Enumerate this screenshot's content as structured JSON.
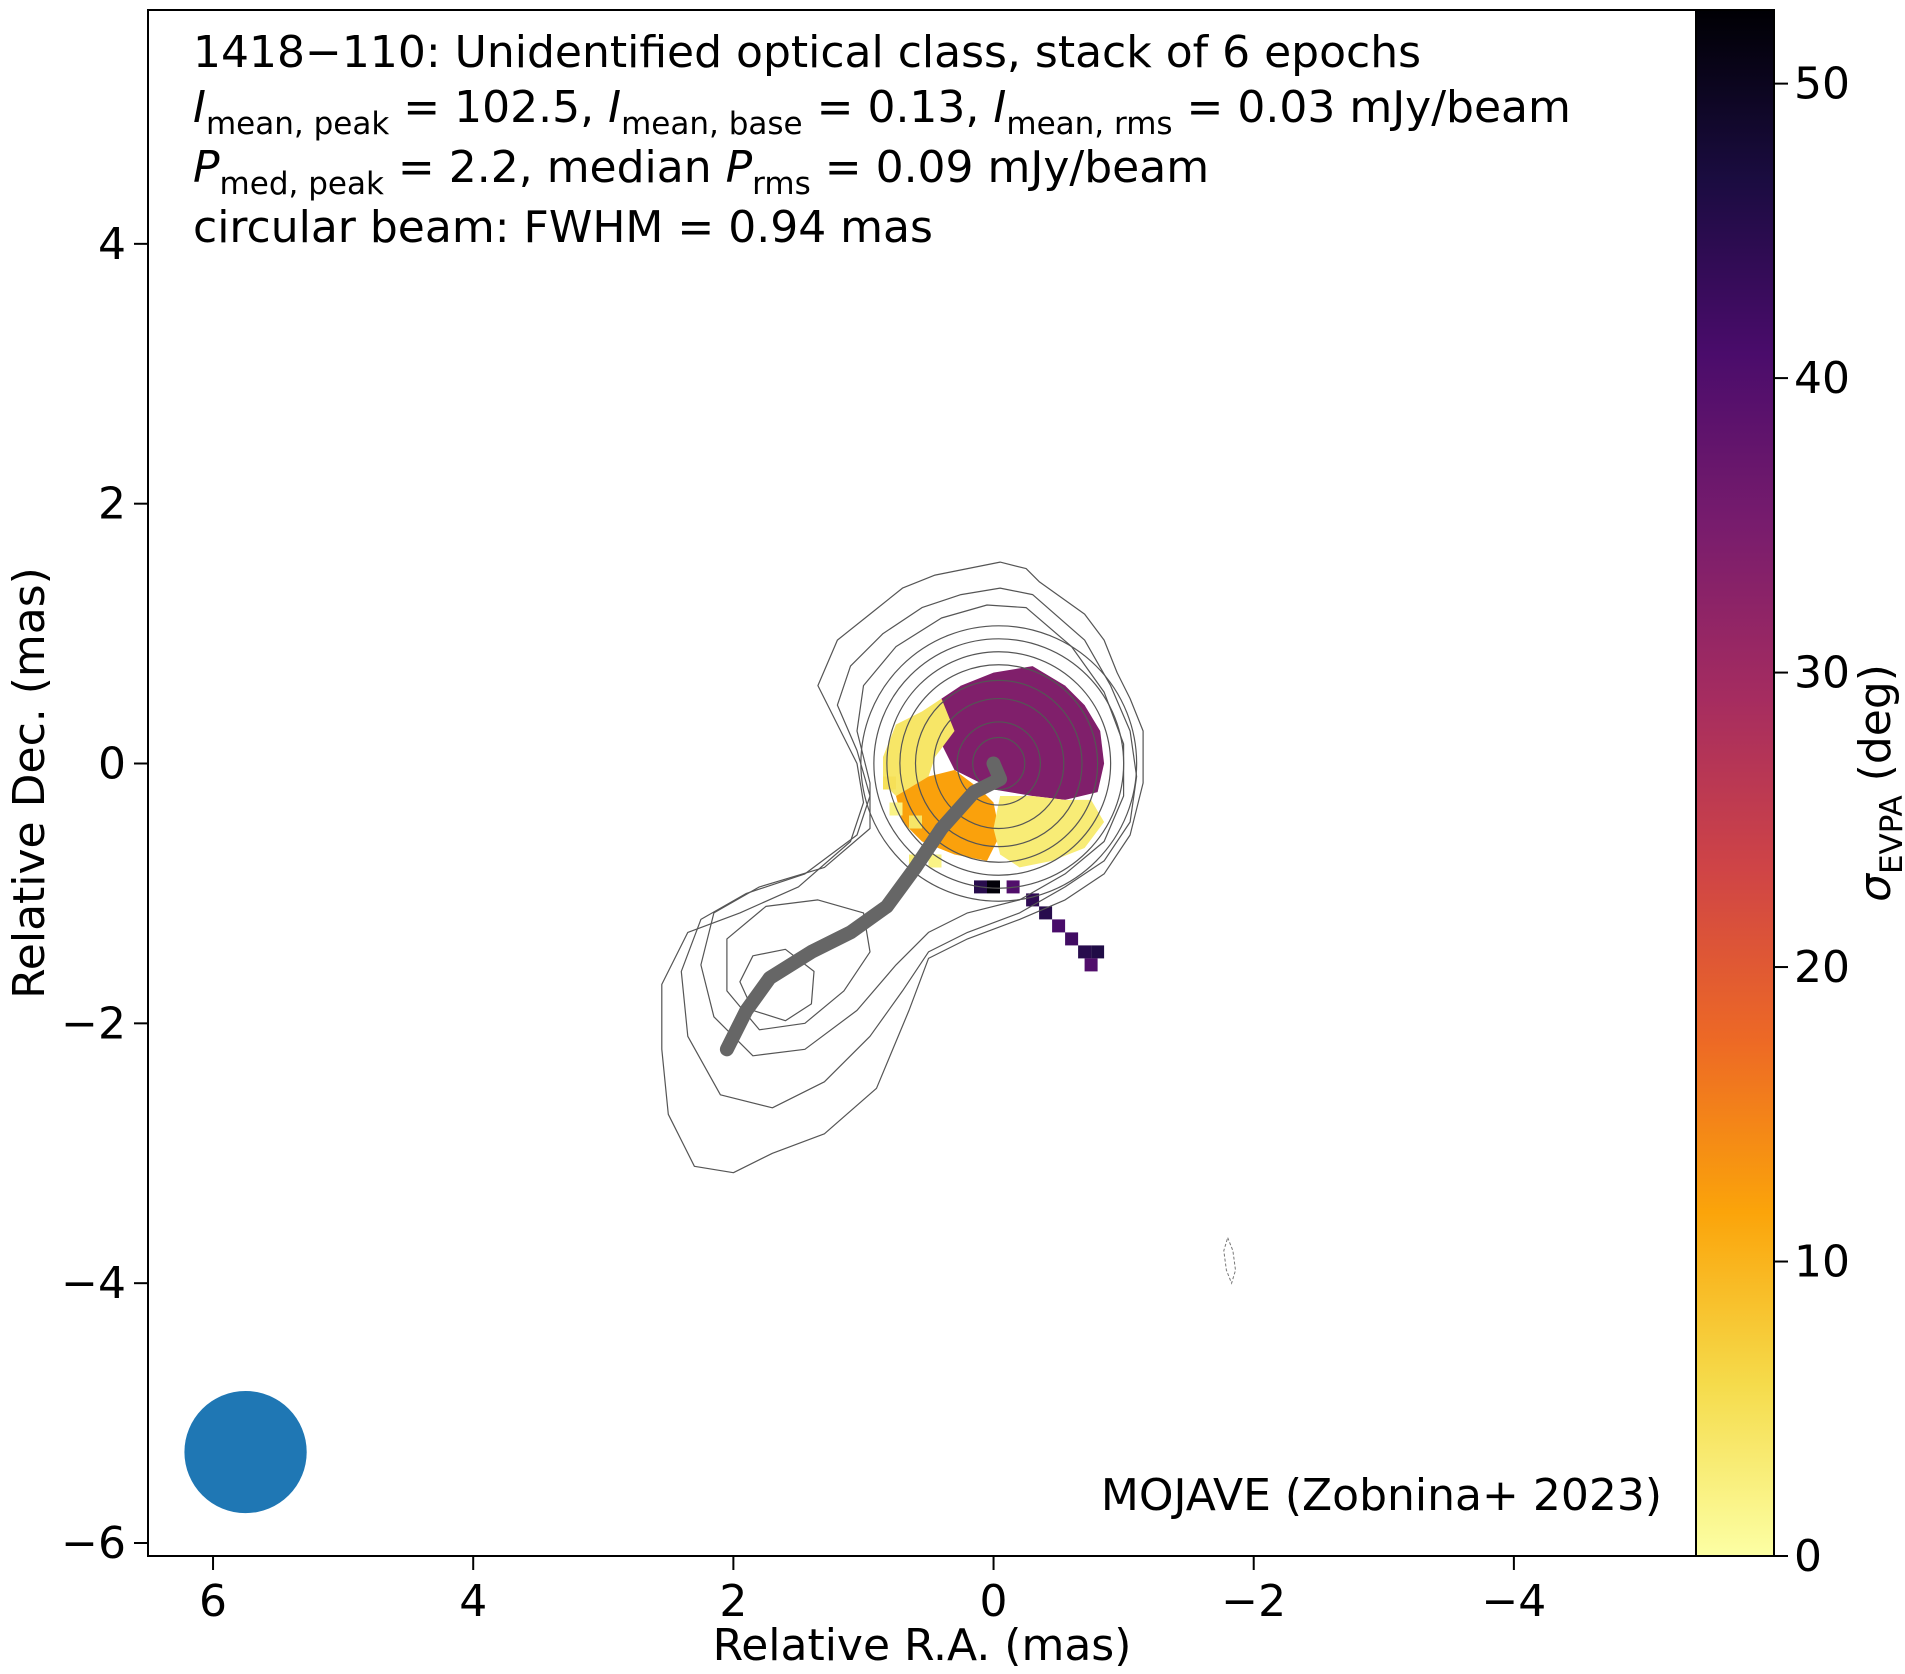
{
  "chart_data": {
    "type": "heatmap",
    "title_lines": [
      "1418−110: Unidentified optical class, stack of 6 epochs",
      "circular beam: FWHM = 0.94 mas"
    ],
    "stats": {
      "i_peak_sym": "I",
      "i_peak_sub": "mean, peak",
      "i_peak_val": " = 102.5, ",
      "i_base_sym": "I",
      "i_base_sub": "mean, base",
      "i_base_val": " = 0.13, ",
      "i_rms_sym": "I",
      "i_rms_sub": "mean, rms",
      "i_rms_val": " = 0.03 mJy/beam",
      "p_peak_sym": "P",
      "p_peak_sub": "med, peak",
      "p_peak_val": " = 2.2, median ",
      "p_rms_sym": "P",
      "p_rms_sub": "rms",
      "p_rms_val": " = 0.09 mJy/beam"
    },
    "credit": "MOJAVE (Zobnina+ 2023)",
    "xlabel": "Relative R.A. (mas)",
    "ylabel": "Relative Dec. (mas)",
    "xlim": [
      6.5,
      -5.4
    ],
    "ylim": [
      -6.1,
      5.8
    ],
    "xticks": [
      6,
      4,
      2,
      0,
      -2,
      -4
    ],
    "yticks": [
      4,
      2,
      0,
      -2,
      -4,
      -6
    ],
    "x_tick_labels": [
      "6",
      "4",
      "2",
      "0",
      "−2",
      "−4"
    ],
    "y_tick_labels": [
      "4",
      "2",
      "0",
      "−2",
      "−4",
      "−6"
    ],
    "colorbar": {
      "label_symbol": "σ",
      "label_sub": "EVPA",
      "label_unit": " (deg)",
      "range": [
        0,
        52.5
      ],
      "ticks": [
        0,
        10,
        20,
        30,
        40,
        50
      ],
      "tick_labels": [
        "0",
        "10",
        "20",
        "30",
        "40",
        "50"
      ],
      "colormap": "inferno_r",
      "stops": [
        "#fcffa4",
        "#f5db4b",
        "#fba40a",
        "#ed6925",
        "#cf4446",
        "#a52c60",
        "#781c6d",
        "#4a0c6b",
        "#1b0c41",
        "#000004"
      ]
    },
    "beam": {
      "x": 5.75,
      "y": -5.3,
      "fwhm_mas": 0.94,
      "color": "#1f77b4"
    },
    "ridgeline": {
      "color": "#666666",
      "x": [
        0.0,
        -0.05,
        0.15,
        0.4,
        0.6,
        0.82,
        1.1,
        1.4,
        1.72,
        1.9,
        2.05
      ],
      "y": [
        0.0,
        -0.12,
        -0.22,
        -0.5,
        -0.8,
        -1.1,
        -1.3,
        -1.45,
        -1.65,
        -1.9,
        -2.2
      ]
    },
    "contours": [
      {
        "x": [
          -0.35,
          -0.25,
          -0.05,
          0.2,
          0.45,
          0.7,
          0.95,
          1.2,
          1.35,
          1.2,
          1.05,
          1.0,
          1.1,
          1.5,
          1.95,
          2.35,
          2.55,
          2.55,
          2.5,
          2.3,
          2.0,
          1.7,
          1.3,
          0.9,
          0.65,
          0.5,
          0.2,
          -0.2,
          -0.55,
          -0.85,
          -1.05,
          -1.15,
          -1.15,
          -1.05,
          -0.95,
          -0.85,
          -0.7,
          -0.35
        ],
        "y": [
          1.4,
          1.5,
          1.55,
          1.5,
          1.45,
          1.35,
          1.15,
          0.95,
          0.6,
          0.3,
          0.0,
          -0.3,
          -0.6,
          -0.95,
          -1.15,
          -1.3,
          -1.7,
          -2.2,
          -2.7,
          -3.1,
          -3.15,
          -3.0,
          -2.85,
          -2.5,
          -1.9,
          -1.5,
          -1.35,
          -1.2,
          -1.05,
          -0.85,
          -0.55,
          -0.15,
          0.25,
          0.5,
          0.7,
          0.95,
          1.15,
          1.4
        ]
      },
      {
        "x": [
          -0.3,
          -0.05,
          0.25,
          0.55,
          0.85,
          1.1,
          1.2,
          1.05,
          0.95,
          1.05,
          1.45,
          1.9,
          2.25,
          2.4,
          2.35,
          2.1,
          1.7,
          1.3,
          0.95,
          0.7,
          0.5,
          0.2,
          -0.2,
          -0.55,
          -0.85,
          -1.05,
          -1.1,
          -1.05,
          -0.9,
          -0.7,
          -0.3
        ],
        "y": [
          1.3,
          1.35,
          1.3,
          1.2,
          1.0,
          0.75,
          0.45,
          0.1,
          -0.25,
          -0.55,
          -0.85,
          -1.0,
          -1.2,
          -1.6,
          -2.1,
          -2.55,
          -2.65,
          -2.45,
          -2.1,
          -1.75,
          -1.45,
          -1.3,
          -1.15,
          -0.95,
          -0.75,
          -0.45,
          -0.1,
          0.25,
          0.6,
          0.95,
          1.3
        ]
      },
      {
        "x": [
          -0.25,
          0.05,
          0.4,
          0.75,
          1.0,
          1.05,
          0.95,
          0.95,
          1.3,
          1.8,
          2.15,
          2.25,
          2.15,
          1.85,
          1.45,
          1.05,
          0.75,
          0.5,
          0.2,
          -0.2,
          -0.55,
          -0.85,
          -1.0,
          -1.0,
          -0.85,
          -0.6,
          -0.25
        ],
        "y": [
          1.2,
          1.22,
          1.12,
          0.9,
          0.6,
          0.25,
          -0.15,
          -0.5,
          -0.8,
          -0.95,
          -1.15,
          -1.55,
          -1.95,
          -2.25,
          -2.2,
          -1.9,
          -1.55,
          -1.3,
          -1.15,
          -1.05,
          -0.85,
          -0.6,
          -0.25,
          0.15,
          0.55,
          0.9,
          1.2
        ]
      },
      {
        "x": [
          1.35,
          1.75,
          2.05,
          2.05,
          1.8,
          1.45,
          1.15,
          0.95,
          1.0,
          1.35
        ],
        "y": [
          -1.05,
          -1.1,
          -1.35,
          -1.75,
          -2.05,
          -2.0,
          -1.75,
          -1.45,
          -1.15,
          -1.05
        ]
      },
      {
        "x": [
          1.6,
          1.85,
          1.95,
          1.85,
          1.6,
          1.4,
          1.38,
          1.6
        ],
        "y": [
          -1.43,
          -1.48,
          -1.68,
          -1.9,
          -1.98,
          -1.85,
          -1.6,
          -1.43
        ]
      },
      {
        "cx": -0.04,
        "cy": 0.0,
        "r": 1.06
      },
      {
        "cx": -0.04,
        "cy": 0.0,
        "r": 0.96
      },
      {
        "cx": -0.04,
        "cy": 0.0,
        "r": 0.86
      },
      {
        "cx": -0.04,
        "cy": 0.0,
        "r": 0.76
      },
      {
        "cx": -0.04,
        "cy": 0.0,
        "r": 0.64
      },
      {
        "cx": -0.04,
        "cy": 0.0,
        "r": 0.5
      },
      {
        "cx": -0.04,
        "cy": 0.0,
        "r": 0.32
      },
      {
        "cx": -0.04,
        "cy": 0.0,
        "r": 0.2
      }
    ],
    "negative_contour": {
      "x": [
        -1.8,
        -1.84,
        -1.86,
        -1.83,
        -1.79,
        -1.77,
        -1.8
      ],
      "y": [
        -3.65,
        -3.75,
        -3.9,
        -4.0,
        -3.9,
        -3.75,
        -3.65
      ]
    },
    "evpa_map": {
      "pixel_mas": 0.1,
      "cells": [
        [
          0.1,
          -0.95,
          45
        ],
        [
          0.0,
          -0.95,
          52
        ],
        [
          -0.15,
          -0.95,
          40
        ],
        [
          -0.3,
          -1.05,
          44
        ],
        [
          -0.4,
          -1.15,
          45
        ],
        [
          -0.5,
          -1.25,
          41
        ],
        [
          -0.6,
          -1.35,
          42
        ],
        [
          -0.7,
          -1.45,
          45
        ],
        [
          -0.8,
          -1.45,
          46
        ],
        [
          -0.75,
          -1.55,
          40
        ],
        [
          0.6,
          -0.75,
          3
        ],
        [
          0.45,
          -0.75,
          2
        ],
        [
          0.6,
          -0.45,
          4
        ],
        [
          0.75,
          -0.35,
          2
        ],
        [
          0.8,
          -0.15,
          5
        ]
      ],
      "regions": [
        {
          "name": "core",
          "value": 34,
          "x": [
            0.4,
            0.25,
            0.0,
            -0.3,
            -0.55,
            -0.7,
            -0.82,
            -0.85,
            -0.8,
            -0.55,
            -0.3,
            0.0,
            0.3,
            0.45,
            0.4
          ],
          "y": [
            0.5,
            0.6,
            0.7,
            0.75,
            0.6,
            0.45,
            0.25,
            0.0,
            -0.22,
            -0.28,
            -0.25,
            -0.2,
            -0.05,
            0.25,
            0.5
          ]
        },
        {
          "name": "north-east-yellow",
          "value": 4,
          "x": [
            0.4,
            0.55,
            0.75,
            0.85,
            0.85,
            0.75,
            0.5,
            0.45,
            0.3,
            0.4
          ],
          "y": [
            0.5,
            0.4,
            0.3,
            0.05,
            -0.15,
            -0.25,
            -0.1,
            0.05,
            0.25,
            0.5
          ]
        },
        {
          "name": "south-orange",
          "value": 12,
          "x": [
            0.5,
            0.75,
            0.7,
            0.55,
            0.3,
            0.05,
            -0.05,
            0.0,
            0.1,
            0.3,
            0.5
          ],
          "y": [
            -0.1,
            -0.25,
            -0.45,
            -0.6,
            -0.7,
            -0.75,
            -0.55,
            -0.3,
            -0.2,
            -0.05,
            -0.1
          ]
        },
        {
          "name": "south-west-yellow",
          "value": 3,
          "x": [
            -0.05,
            -0.3,
            -0.55,
            -0.75,
            -0.85,
            -0.7,
            -0.45,
            -0.2,
            -0.05,
            0.0,
            -0.05
          ],
          "y": [
            -0.25,
            -0.25,
            -0.28,
            -0.28,
            -0.45,
            -0.65,
            -0.75,
            -0.8,
            -0.7,
            -0.5,
            -0.25
          ]
        }
      ]
    }
  }
}
